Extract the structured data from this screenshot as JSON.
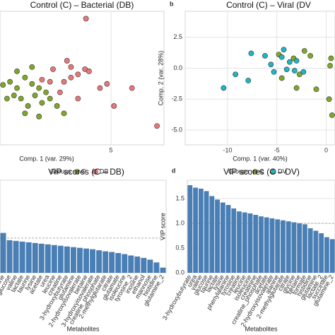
{
  "chart_data": [
    {
      "type": "scatter",
      "panel": "",
      "title": "Control (C) – Bacterial (DB)",
      "xlabel": "Comp. 1 (var. 29%)",
      "legend_title": "Groups",
      "xlim": [
        -6.1,
        10.3
      ],
      "ylim": [
        -5.7,
        7
      ],
      "xticks": [
        5
      ],
      "series": [
        {
          "name": "C",
          "color": "#7fa828",
          "x": [
            -5.8,
            -5.1,
            -4.4,
            -3.6,
            -2.9,
            -2.2,
            -1.5,
            -4.7,
            -4.0,
            -3.3,
            -2.6,
            -1.9,
            -1.1,
            -0.4,
            -5.4,
            -4.4,
            -2.9,
            -3.6,
            -2.2,
            0.3
          ],
          "values": [
            0,
            0.3,
            -0.3,
            0.7,
            0.1,
            -0.3,
            -0.7,
            -1.0,
            -1.3,
            -2.0,
            -1.0,
            -1.7,
            -1.3,
            -2.0,
            -1.3,
            1.3,
            1.7,
            -2.7,
            -3.0,
            -2.7
          ]
        },
        {
          "name": "DB",
          "color": "#e8777a",
          "x": [
            2.5,
            0.6,
            2.4,
            2.8,
            1.7,
            1.0,
            0.3,
            -0.1,
            -1.1,
            -1.9,
            -0.8,
            3.9,
            4.6,
            7.1,
            5.3,
            9.6,
            1.7,
            1.0
          ],
          "values": [
            6.3,
            2.3,
            1.5,
            1.3,
            1.0,
            0.7,
            0.3,
            -0.7,
            0.3,
            0.5,
            1.5,
            -0.3,
            0.1,
            -0.3,
            -2.0,
            -3.9,
            -1.3,
            1.7
          ]
        }
      ]
    },
    {
      "type": "scatter",
      "panel": "b",
      "title": "Control (C) – Viral (DV",
      "xlabel": "Comp. 1 (var. 40%)",
      "ylabel": "Comp. 2 (var. 28%)",
      "legend_title": "Groups",
      "xlim": [
        -14.3,
        0.9
      ],
      "ylim": [
        -6.2,
        4.6
      ],
      "xticks": [
        -10,
        -5,
        0
      ],
      "yticks": [
        {
          "value": 2.5,
          "label": "2.5"
        },
        {
          "value": 0,
          "label": "0.0"
        },
        {
          "value": -2.5,
          "label": "-2.5"
        },
        {
          "value": -5,
          "label": "-5.0"
        }
      ],
      "series": [
        {
          "name": "C",
          "color": "#7fa828",
          "x": [
            -4.8,
            -3.3,
            -2.2,
            -1.6,
            -2.7,
            -4.5,
            -3.0,
            -1.0,
            0.5,
            0.3,
            0.6,
            0.4
          ],
          "values": [
            1.1,
            0.8,
            1.4,
            1.0,
            -0.5,
            -0.8,
            -1.6,
            -1.7,
            0.8,
            -2.5,
            -3.8,
            0.2
          ]
        },
        {
          "name": "DV",
          "color": "#1fb5c4",
          "x": [
            -7.6,
            -6.2,
            -4.3,
            -4.5,
            -3.7,
            -3.0,
            -5.3,
            -7.9,
            -10.4,
            -9.2,
            -4.0,
            -3.2,
            -2.3,
            -5.6
          ],
          "values": [
            1.2,
            1.0,
            1.5,
            0.9,
            0.5,
            0.6,
            -0.3,
            -1.0,
            -1.6,
            -0.5,
            -0.1,
            -0.2,
            -0.3,
            0.3
          ]
        }
      ]
    },
    {
      "type": "bar",
      "panel": "",
      "title": "VIP scores (C – DB)",
      "xlabel": "Metabolites",
      "color": "#4a7fb5",
      "ylim": [
        0,
        2.67
      ],
      "reference_line": 1,
      "categories": [
        "glycine",
        "glucose",
        "valine",
        "lactate",
        "taurine",
        "lysine",
        "acetate",
        "urea",
        "leucine",
        "creatine",
        "3-hydroxybutyrate",
        "glutamine",
        "2-hydroxyisovalerate",
        "betaine",
        "3-hydroxyisovalerate",
        "creatine_phosphate",
        "2-methylglutarate",
        "citrate",
        "glutamate",
        "isoleucine",
        "tyrosine_2",
        "inosine",
        "ethanol",
        "mannose",
        "histidine",
        "glutamine_2"
      ],
      "values": [
        1.15,
        0.94,
        0.92,
        0.9,
        0.88,
        0.86,
        0.84,
        0.82,
        0.8,
        0.78,
        0.76,
        0.74,
        0.72,
        0.7,
        0.68,
        0.65,
        0.62,
        0.6,
        0.57,
        0.54,
        0.5,
        0.47,
        0.43,
        0.38,
        0.3,
        0.15
      ]
    },
    {
      "type": "bar",
      "panel": "d",
      "title": "VIP scores (C – DV)",
      "xlabel": "Metabolites",
      "ylabel": "VIP score",
      "color": "#4a7fb5",
      "ylim": [
        0,
        1.87
      ],
      "reference_line": 1,
      "yticks": [
        {
          "value": 0,
          "label": "0.0"
        },
        0.5,
        {
          "value": 1,
          "label": "1.0"
        },
        1.5
      ],
      "categories": [
        "3-hydroxybutyrate",
        "urea",
        "valine",
        "glucose",
        "taurine",
        "lactate",
        "lysine",
        "phenylalanine",
        "tyrosine",
        "creatine",
        "leucine",
        "isoleucine",
        "creatinine",
        "creatine_phosphate",
        "acetate",
        "2-hydroxyisovalerate",
        "alanine",
        "2-methylglutarate",
        "citrate",
        "glycine",
        "betaine",
        "formate",
        "histidine",
        "glutamine",
        "lactate_2",
        "succinate",
        "glutamine_2"
      ],
      "values": [
        1.77,
        1.72,
        1.7,
        1.65,
        1.55,
        1.48,
        1.42,
        1.37,
        1.3,
        1.24,
        1.22,
        1.2,
        1.17,
        1.14,
        1.12,
        1.1,
        1.08,
        1.06,
        1.04,
        1.02,
        1.0,
        0.98,
        0.9,
        0.85,
        0.8,
        0.72,
        0.68
      ]
    }
  ]
}
